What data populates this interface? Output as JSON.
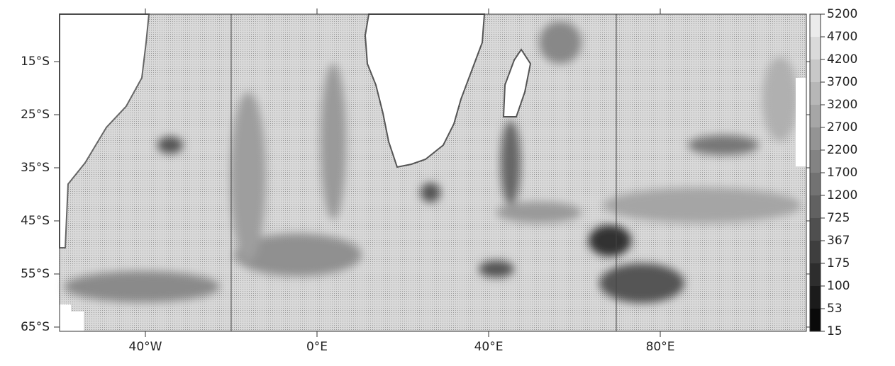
{
  "map": {
    "x_ticks": [
      {
        "value": -40,
        "label": "40°W"
      },
      {
        "value": 0,
        "label": "0°E"
      },
      {
        "value": 40,
        "label": "40°E"
      },
      {
        "value": 80,
        "label": "80°E"
      }
    ],
    "y_ticks": [
      {
        "value": -15,
        "label": "15°S"
      },
      {
        "value": -25,
        "label": "25°S"
      },
      {
        "value": -35,
        "label": "35°S"
      },
      {
        "value": -45,
        "label": "45°S"
      },
      {
        "value": -55,
        "label": "55°S"
      },
      {
        "value": -65,
        "label": "65°S"
      }
    ],
    "colorbar": {
      "labels": [
        5200,
        4700,
        4200,
        3700,
        3200,
        2700,
        2200,
        1700,
        1200,
        725,
        367,
        175,
        100,
        53,
        15
      ]
    }
  }
}
